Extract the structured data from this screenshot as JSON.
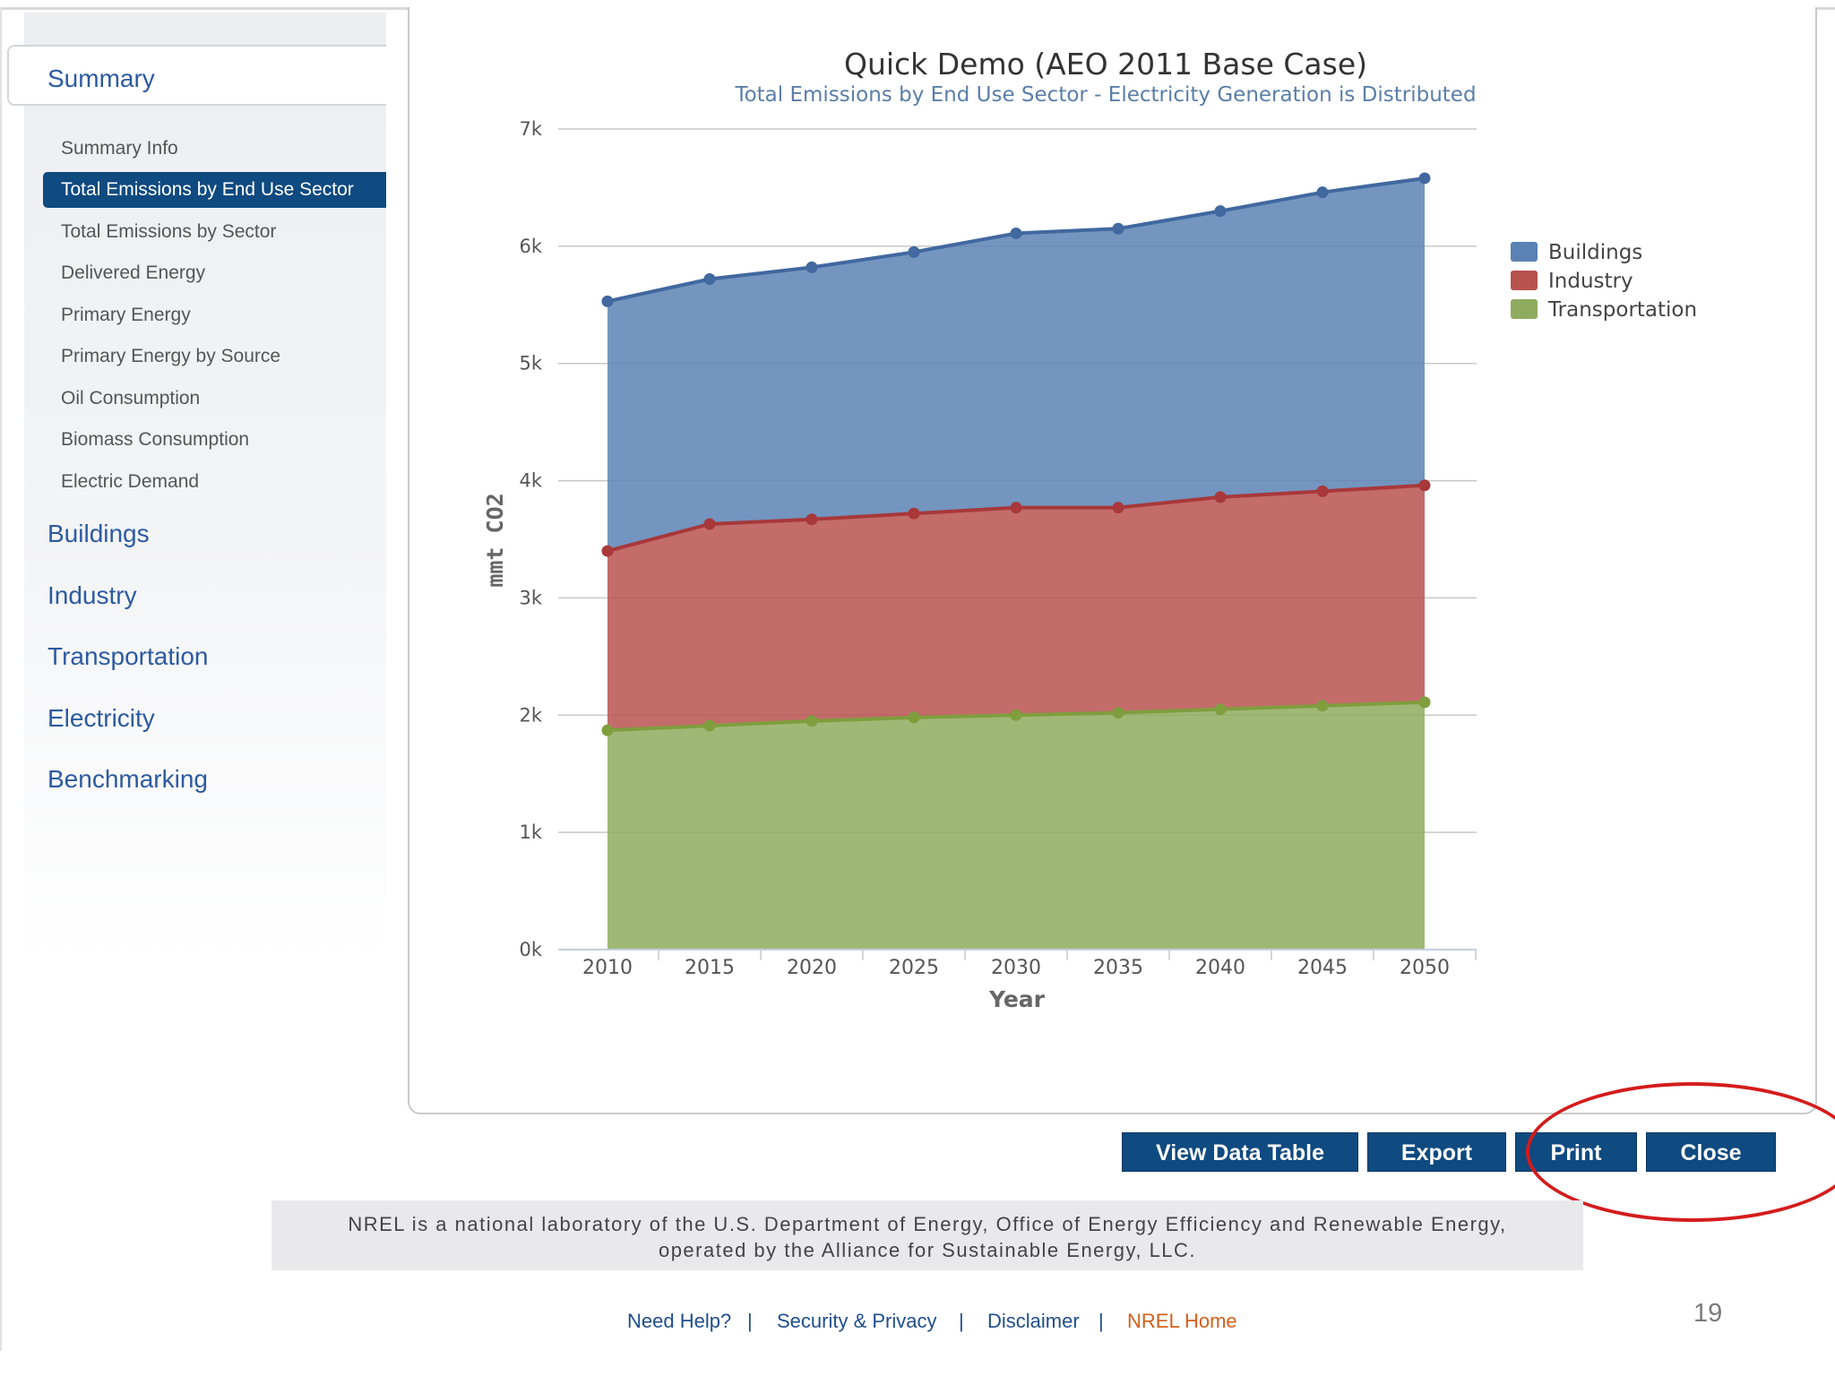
{
  "sidebar": {
    "summary_label": "Summary",
    "sub_items": [
      {
        "label": "Summary Info"
      },
      {
        "label": "Total Emissions by End Use Sector"
      },
      {
        "label": "Total Emissions by Sector"
      },
      {
        "label": "Delivered Energy"
      },
      {
        "label": "Primary Energy"
      },
      {
        "label": "Primary Energy by Source"
      },
      {
        "label": "Oil Consumption"
      },
      {
        "label": "Biomass Consumption"
      },
      {
        "label": "Electric Demand"
      }
    ],
    "main_items": [
      {
        "label": "Buildings"
      },
      {
        "label": "Industry"
      },
      {
        "label": "Transportation"
      },
      {
        "label": "Electricity"
      },
      {
        "label": "Benchmarking"
      }
    ]
  },
  "chart_data": {
    "type": "area",
    "stacked": true,
    "title": "Quick Demo (AEO 2011 Base Case)",
    "subtitle": "Total Emissions by End Use Sector - Electricity Generation is Distributed",
    "xlabel": "Year",
    "ylabel": "mmt CO2",
    "x": [
      2010,
      2015,
      2020,
      2025,
      2030,
      2035,
      2040,
      2045,
      2050
    ],
    "ylim": [
      0,
      7000
    ],
    "y_ticks": [
      "0k",
      "1k",
      "2k",
      "3k",
      "4k",
      "5k",
      "6k",
      "7k"
    ],
    "legend_position": "right",
    "grid": true,
    "series": [
      {
        "name": "Transportation",
        "color": "#8fac5e",
        "values": [
          1870,
          1910,
          1950,
          1980,
          2000,
          2020,
          2050,
          2080,
          2110
        ]
      },
      {
        "name": "Industry",
        "color": "#b85250",
        "values": [
          1530,
          1720,
          1720,
          1740,
          1770,
          1750,
          1810,
          1830,
          1850
        ]
      },
      {
        "name": "Buildings",
        "color": "#5a82b4",
        "values": [
          2130,
          2090,
          2150,
          2230,
          2340,
          2380,
          2440,
          2550,
          2620
        ]
      }
    ],
    "legend_order": [
      "Buildings",
      "Industry",
      "Transportation"
    ]
  },
  "buttons": {
    "view_data_table": "View Data Table",
    "export": "Export",
    "print": "Print",
    "close": "Close"
  },
  "footer": {
    "line1": "NREL is a national laboratory of the U.S. Department of Energy, Office of Energy Efficiency and Renewable Energy,",
    "line2": "operated by the Alliance for Sustainable Energy, LLC.",
    "links": [
      "Need Help?",
      "Security & Privacy",
      "Disclaimer",
      "NREL Home"
    ],
    "separator": "|",
    "highlight_link_color": "#d2601a"
  },
  "page_number": "19"
}
